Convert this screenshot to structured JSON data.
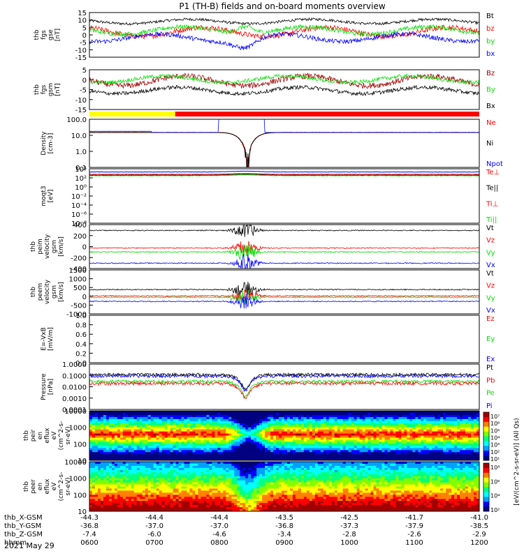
{
  "title": "P1 (TH-B) fields and on-board moments overview",
  "date": "2021 May 29",
  "time_axis": {
    "row_labels": [
      "thb_X-GSM",
      "thb_Y-GSM",
      "thb_Z-GSM",
      "hhmm"
    ],
    "rows": [
      [
        "-44.3",
        "-44.4",
        "-44.4",
        "-43.5",
        "-42.5",
        "-41.7",
        "-41.0"
      ],
      [
        "-36.8",
        "-37.0",
        "-37.0",
        "-36.8",
        "-37.3",
        "-37.9",
        "-38.5"
      ],
      [
        "-7.4",
        "-6.0",
        "-4.6",
        "-3.4",
        "-2.8",
        "-2.6",
        "-2.9"
      ],
      [
        "0600",
        "0700",
        "0800",
        "0900",
        "1000",
        "1100",
        "1200"
      ]
    ]
  },
  "colors": {
    "black": "#000000",
    "red": "#ff0000",
    "green": "#00e000",
    "blue": "#0000ff",
    "darkred": "#a00000",
    "yellow": "#ffff00"
  },
  "chart_data": [
    {
      "type": "line",
      "name": "fgs_gse",
      "ylabel_lines": [
        "thb",
        "fgs",
        "gse",
        "[nT]"
      ],
      "ylim": [
        -15,
        15
      ],
      "ticks": [
        "15",
        "10",
        "5",
        "0",
        "-5",
        "-10",
        "-15"
      ],
      "legend": [
        "Bt",
        "bz",
        "by",
        "bx"
      ],
      "series": [
        {
          "name": "Bt",
          "color": "#000000",
          "base": 9,
          "amp": 1.5
        },
        {
          "name": "bz",
          "color": "#ff0000",
          "base": 2,
          "amp": 3
        },
        {
          "name": "by",
          "color": "#00e000",
          "base": 3,
          "amp": 2.5
        },
        {
          "name": "bx",
          "color": "#0000ff",
          "base": -2,
          "amp": 2.5
        }
      ]
    },
    {
      "type": "line",
      "name": "fgs_gsm",
      "ylabel_lines": [
        "thb",
        "fgs",
        "gsm",
        "[nT]"
      ],
      "ylim": [
        -15,
        10
      ],
      "ticks": [
        "5",
        "0",
        "-5",
        "-10",
        "-15"
      ],
      "legend": [
        "Bz",
        "By",
        "Bx"
      ],
      "series": [
        {
          "name": "Bz",
          "color": "#a00000",
          "base": 3,
          "amp": 3
        },
        {
          "name": "By",
          "color": "#00e000",
          "base": 4,
          "amp": 2
        },
        {
          "name": "Bx",
          "color": "#000000",
          "base": -3,
          "amp": 2
        }
      ]
    },
    {
      "type": "line",
      "name": "density",
      "ylabel_lines": [
        "Density",
        "[cm-3]"
      ],
      "ylim_log": [
        0.01,
        100
      ],
      "ticks": [
        "100.0",
        "10.0",
        "1.0",
        "0.1"
      ],
      "legend": [
        "Ne",
        "Ni",
        "Npot"
      ]
    },
    {
      "type": "line",
      "name": "temperature",
      "ylabel_lines": [
        "moqt3",
        "[eV]"
      ],
      "ylim_log": [
        1e-08,
        10000.0
      ],
      "ticks": [
        "10⁴",
        "10²",
        "10⁰",
        "10⁻²",
        "10⁻⁴",
        "10⁻⁶",
        "10⁻⁸"
      ],
      "legend": [
        "Te⊥",
        "Te||",
        "Ti⊥",
        "Ti||"
      ]
    },
    {
      "type": "line",
      "name": "peim_velocity",
      "ylabel_lines": [
        "thb",
        "peim",
        "velocity",
        "gsm",
        "[km/s]"
      ],
      "ylim": [
        -400,
        500
      ],
      "ticks": [
        "400",
        "200",
        "0",
        "-200",
        "-400"
      ],
      "legend": [
        "Vt",
        "Vz",
        "Vy",
        "Vx"
      ]
    },
    {
      "type": "line",
      "name": "peem_velocity",
      "ylabel_lines": [
        "thb",
        "peem",
        "velocity",
        "gsm",
        "[km/s]"
      ],
      "ylim": [
        -1000,
        1500
      ],
      "ticks": [
        "1500",
        "1000",
        "500",
        "0",
        "-500",
        "-1000"
      ],
      "legend": [
        "Vt",
        "Vz",
        "Vy",
        "Vx"
      ]
    },
    {
      "type": "line",
      "name": "efield",
      "ylabel_lines": [
        "E=-VxB",
        "[mV/m]"
      ],
      "ylim": [
        0,
        1
      ],
      "ticks": [
        "1.0",
        "0.8",
        "0.6",
        "0.4",
        "0.2",
        "0.0"
      ],
      "legend": [
        "Ez",
        "Ey",
        "Ex"
      ]
    },
    {
      "type": "line",
      "name": "pressure",
      "ylabel_lines": [
        "Pressure",
        "[nPa]"
      ],
      "ylim_log": [
        0.0001,
        1
      ],
      "ticks": [
        "1.0000",
        "0.1000",
        "0.0100",
        "0.0010",
        "0.0001"
      ],
      "legend": [
        "Pt",
        "Pb",
        "Pe",
        "Pi"
      ]
    },
    {
      "type": "heatmap",
      "name": "peir_eflux",
      "ylabel_lines": [
        "thb",
        "peir",
        "en",
        "eflux",
        "eV",
        "(cm^2-s-",
        "sr-eV)"
      ],
      "ticks": [
        "10000",
        "1000",
        "100",
        "10"
      ]
    },
    {
      "type": "heatmap",
      "name": "peer_eflux",
      "ylabel_lines": [
        "thb",
        "peer",
        "en",
        "eflux",
        "eV",
        "(cm^2-s-",
        "sr-eV)"
      ],
      "ticks": [
        "10000",
        "1000",
        "100",
        "10"
      ]
    }
  ],
  "colorbar": {
    "label": "[eV/(cm^2-s-sr-eV)] (All Qs)",
    "upper_ticks": [
      "10⁷",
      "10⁶",
      "10⁵",
      "10⁴",
      "10³",
      "10²",
      "10¹"
    ],
    "lower_ticks": [
      "10⁸",
      "10⁶",
      "10⁴",
      "10²"
    ]
  }
}
